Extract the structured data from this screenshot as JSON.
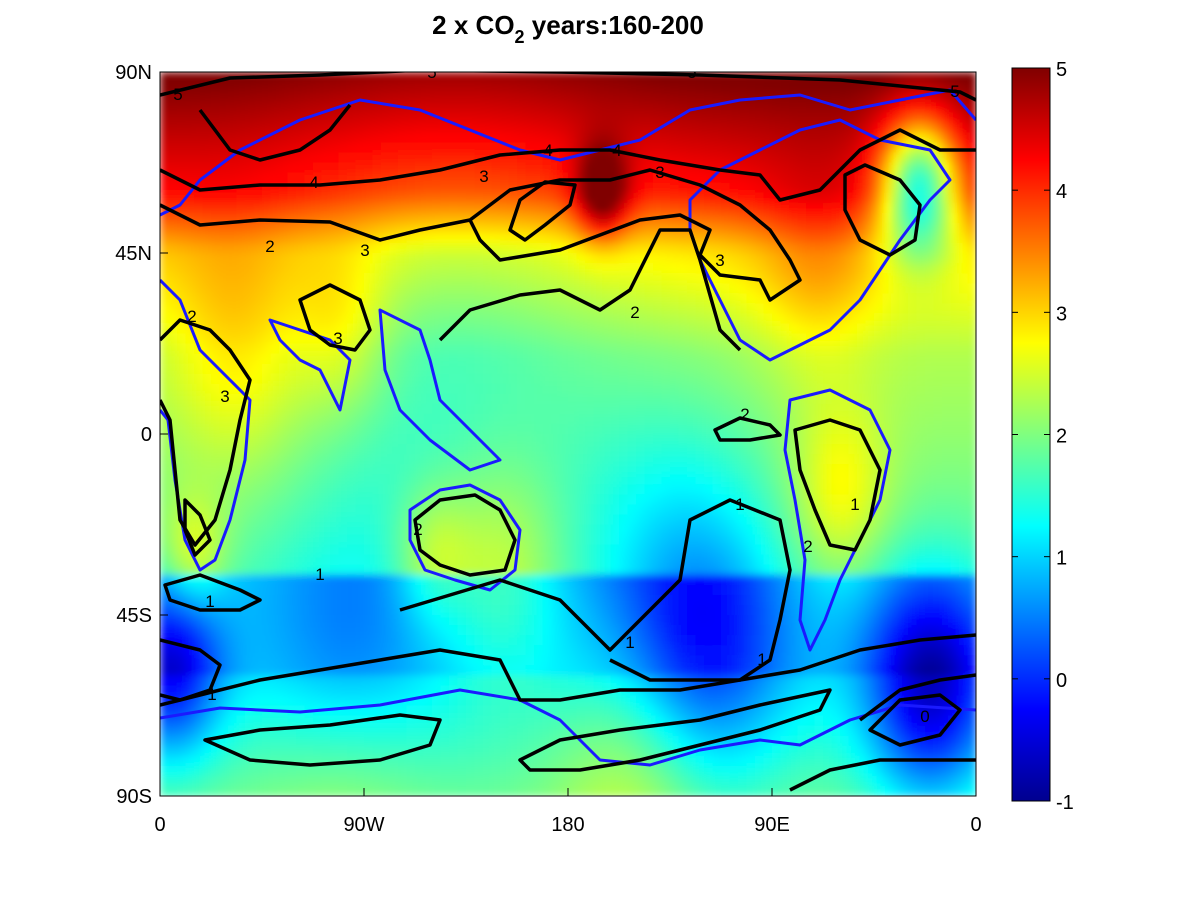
{
  "chart_data": {
    "type": "heatmap",
    "title": {
      "prefix": "2 x CO",
      "subscript": "2",
      "suffix": " years:160-200"
    },
    "xlabel": "",
    "ylabel": "",
    "x_ticks": [
      "0",
      "90W",
      "180",
      "90E",
      "0"
    ],
    "y_ticks": [
      "90N",
      "45N",
      "0",
      "45S",
      "90S"
    ],
    "colorbar": {
      "colormap": "jet",
      "range": [
        -1,
        5
      ],
      "ticks": [
        "5",
        "4",
        "3",
        "2",
        "1",
        "0",
        "-1"
      ]
    },
    "x_positions": [
      0,
      90,
      180,
      270,
      360
    ],
    "y_positions": [
      90,
      45,
      0,
      -45,
      -90
    ],
    "contour_levels": [
      1,
      2,
      3,
      4,
      5
    ],
    "contour_labels": [
      "5",
      "5",
      "5",
      "5",
      "4",
      "4",
      "4",
      "3",
      "3",
      "3",
      "3",
      "3",
      "3",
      "2",
      "2",
      "2",
      "2",
      "2",
      "2",
      "1",
      "1",
      "1",
      "1",
      "1",
      "1",
      "1",
      "0"
    ],
    "grid": false,
    "legend": "none",
    "colors": {
      "contour": "#000000",
      "coastline": "#1a1aff",
      "background": "#ffffff"
    }
  }
}
